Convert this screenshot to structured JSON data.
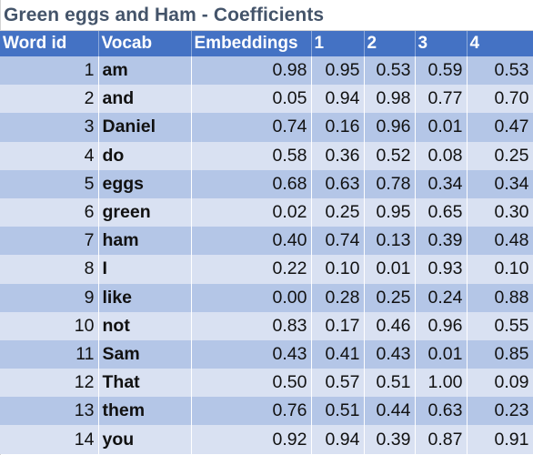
{
  "sheet": {
    "title": "Green eggs and Ham - Coefficients"
  },
  "table": {
    "headers": [
      "Word id",
      "Vocab",
      "Embeddings",
      "1",
      "2",
      "3",
      "4"
    ],
    "rows": [
      {
        "id": "1",
        "word": "am",
        "v": [
          "0.98",
          "0.95",
          "0.53",
          "0.59",
          "0.53"
        ]
      },
      {
        "id": "2",
        "word": "and",
        "v": [
          "0.05",
          "0.94",
          "0.98",
          "0.77",
          "0.70"
        ]
      },
      {
        "id": "3",
        "word": "Daniel",
        "v": [
          "0.74",
          "0.16",
          "0.96",
          "0.01",
          "0.47"
        ]
      },
      {
        "id": "4",
        "word": "do",
        "v": [
          "0.58",
          "0.36",
          "0.52",
          "0.08",
          "0.25"
        ]
      },
      {
        "id": "5",
        "word": "eggs",
        "v": [
          "0.68",
          "0.63",
          "0.78",
          "0.34",
          "0.34"
        ]
      },
      {
        "id": "6",
        "word": "green",
        "v": [
          "0.02",
          "0.25",
          "0.95",
          "0.65",
          "0.30"
        ]
      },
      {
        "id": "7",
        "word": "ham",
        "v": [
          "0.40",
          "0.74",
          "0.13",
          "0.39",
          "0.48"
        ]
      },
      {
        "id": "8",
        "word": "I",
        "v": [
          "0.22",
          "0.10",
          "0.01",
          "0.93",
          "0.10"
        ]
      },
      {
        "id": "9",
        "word": "like",
        "v": [
          "0.00",
          "0.28",
          "0.25",
          "0.24",
          "0.88"
        ]
      },
      {
        "id": "10",
        "word": "not",
        "v": [
          "0.83",
          "0.17",
          "0.46",
          "0.96",
          "0.55"
        ]
      },
      {
        "id": "11",
        "word": "Sam",
        "v": [
          "0.43",
          "0.41",
          "0.43",
          "0.01",
          "0.85"
        ]
      },
      {
        "id": "12",
        "word": "That",
        "v": [
          "0.50",
          "0.57",
          "0.51",
          "1.00",
          "0.09"
        ]
      },
      {
        "id": "13",
        "word": "them",
        "v": [
          "0.76",
          "0.51",
          "0.44",
          "0.63",
          "0.23"
        ]
      },
      {
        "id": "14",
        "word": "you",
        "v": [
          "0.92",
          "0.94",
          "0.39",
          "0.87",
          "0.91"
        ]
      }
    ]
  },
  "colors": {
    "header_bg": "#4472c4",
    "row_band_dark": "#b4c6e7",
    "row_band_light": "#d9e1f2",
    "title_text": "#44546a"
  }
}
